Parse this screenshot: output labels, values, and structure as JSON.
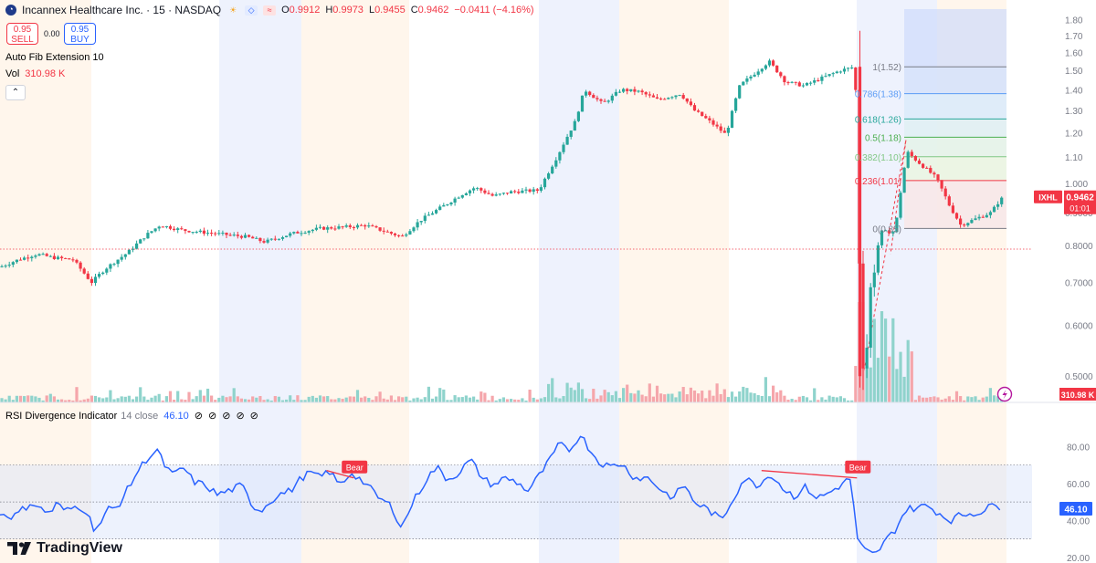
{
  "header": {
    "symbol_title": "Incannex Healthcare Inc. · 15 · NASDAQ",
    "ohlc": [
      {
        "label": "O",
        "value": "0.9912"
      },
      {
        "label": "H",
        "value": "0.9973"
      },
      {
        "label": "L",
        "value": "0.9455"
      },
      {
        "label": "C",
        "value": "0.9462"
      },
      {
        "label": "",
        "value": "−0.0411 (−4.16%)"
      }
    ],
    "sell_price": "0.95",
    "sell_label": "SELL",
    "spread": "0.00",
    "buy_price": "0.95",
    "buy_label": "BUY",
    "indicator_name": "Auto Fib Extension",
    "indicator_param": "10",
    "vol_label": "Vol",
    "vol_value": "310.98 K",
    "collapse_glyph": "⌃"
  },
  "rsi_legend": {
    "name": "RSI Divergence Indicator",
    "params": "14 close",
    "value": "46.10",
    "icons": [
      "⊘",
      "⊘",
      "⊘",
      "⊘",
      "⊘"
    ]
  },
  "branding": {
    "logo_text": "TradingView"
  },
  "colors": {
    "up": "#26a69a",
    "down": "#f23645",
    "rsi": "#2962ff",
    "up_vol": "#8fd3cc",
    "down_vol": "#f5a6ab"
  },
  "chart_data": [
    {
      "type": "candlestick",
      "title": "Incannex Healthcare Inc. · 15 · NASDAQ",
      "y_ticks": [
        "1.80",
        "1.70",
        "1.60",
        "1.50",
        "1.40",
        "1.30",
        "1.20",
        "1.10",
        "1.000",
        "0.9000",
        "0.8000",
        "0.7000",
        "0.6000",
        "0.5000"
      ],
      "y_scale": "log",
      "ylim": [
        0.455,
        1.87
      ],
      "last_price": {
        "label": "IXHL",
        "value": "0.9462",
        "countdown": "01:01"
      },
      "fib_levels": [
        {
          "label": "1(1.52)",
          "value": 1.52
        },
        {
          "label": "0.786(1.38)",
          "value": 1.38
        },
        {
          "label": "0.618(1.26)",
          "value": 1.26
        },
        {
          "label": "0.5(1.18)",
          "value": 1.18
        },
        {
          "label": "0.382(1.10)",
          "value": 1.1
        },
        {
          "label": "0.236(1.01)",
          "value": 1.01
        },
        {
          "label": "0(0.85)",
          "value": 0.85
        }
      ],
      "anchors": {
        "start": 0.5,
        "peak": 1.17,
        "end": 0.775
      },
      "volume": {
        "label": "310.98 K"
      },
      "grid": false,
      "legend": "top-left"
    },
    {
      "type": "line",
      "title": "RSI Divergence Indicator",
      "y_ticks": [
        "80.00",
        "60.00",
        "40.00",
        "20.00"
      ],
      "ylim": [
        17,
        92
      ],
      "bands": [
        30,
        50,
        70
      ],
      "last_value": "46.10",
      "divergences": [
        {
          "label": "Bear",
          "x1": 0.325,
          "v1": 67,
          "x2": 0.352,
          "v2": 63
        },
        {
          "label": "Bear",
          "x1": 0.758,
          "v1": 67,
          "x2": 0.853,
          "v2": 63
        }
      ]
    }
  ]
}
